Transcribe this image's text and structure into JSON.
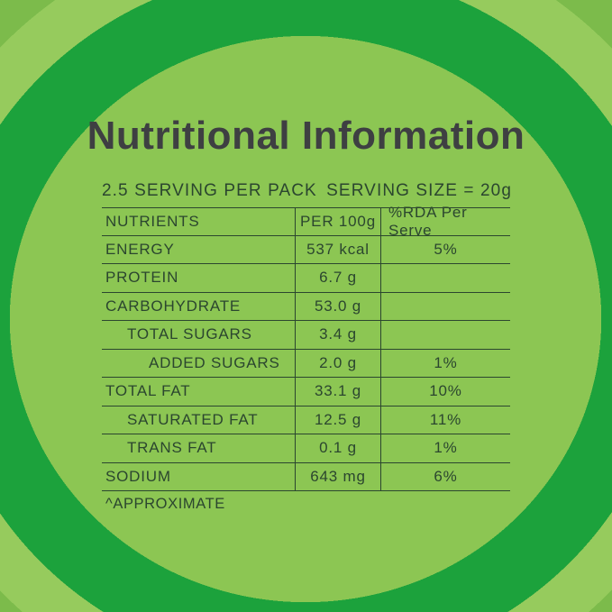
{
  "page": {
    "title": "Nutritional Information",
    "footnote": "^APPROXIMATE"
  },
  "serving": {
    "per_pack": "2.5 SERVING PER PACK",
    "size": "SERVING SIZE = 20g"
  },
  "table": {
    "headers": [
      "NUTRIENTS",
      "PER 100g",
      "%RDA Per Serve"
    ],
    "rows": [
      {
        "nutrient": "ENERGY",
        "per_100g": "537 kcal",
        "rda_per_serve": "5%",
        "indent": 0
      },
      {
        "nutrient": "PROTEIN",
        "per_100g": "6.7 g",
        "rda_per_serve": "",
        "indent": 0
      },
      {
        "nutrient": "CARBOHYDRATE",
        "per_100g": "53.0 g",
        "rda_per_serve": "",
        "indent": 0
      },
      {
        "nutrient": "TOTAL SUGARS",
        "per_100g": "3.4 g",
        "rda_per_serve": "",
        "indent": 1
      },
      {
        "nutrient": "ADDED SUGARS",
        "per_100g": "2.0 g",
        "rda_per_serve": "1%",
        "indent": 2
      },
      {
        "nutrient": "TOTAL FAT",
        "per_100g": "33.1 g",
        "rda_per_serve": "10%",
        "indent": 0
      },
      {
        "nutrient": "SATURATED FAT",
        "per_100g": "12.5 g",
        "rda_per_serve": "11%",
        "indent": 1
      },
      {
        "nutrient": "TRANS FAT",
        "per_100g": "0.1 g",
        "rda_per_serve": "1%",
        "indent": 1
      },
      {
        "nutrient": "SODIUM",
        "per_100g": "643 mg",
        "rda_per_serve": "6%",
        "indent": 0
      }
    ]
  },
  "colors": {
    "center_green": "#8CC653",
    "dark_ring_green": "#1CA23C",
    "outer_band_green": "#96CB5D",
    "corner_green": "#7CBB4B",
    "title_text": "#3E3F42",
    "table_text": "#2B462F"
  }
}
